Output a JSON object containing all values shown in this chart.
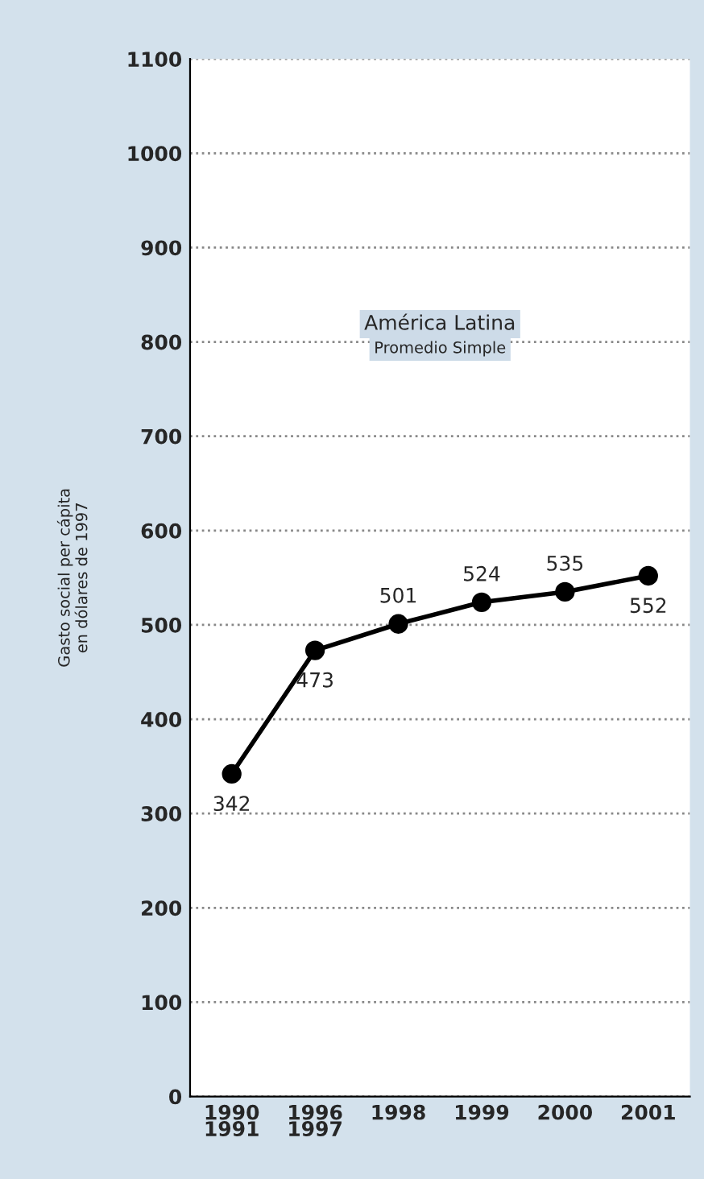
{
  "chart_data": {
    "type": "line",
    "title": "América Latina",
    "subtitle": "Promedio Simple",
    "ylabel": "Gasto social per cápita\nen dólares de 1997",
    "categories": [
      "1990\n1991",
      "1996\n1997",
      "1998",
      "1999",
      "2000",
      "2001"
    ],
    "series": [
      {
        "color": "#000000",
        "values": [
          342,
          473,
          501,
          524,
          535,
          552
        ]
      }
    ],
    "ylim": [
      0,
      1100
    ],
    "yticks": [
      0,
      100,
      200,
      300,
      400,
      500,
      600,
      700,
      800,
      900,
      1000,
      1100
    ],
    "grid": "y",
    "marker": "circle",
    "line_style": "solid",
    "data_labels": true
  }
}
